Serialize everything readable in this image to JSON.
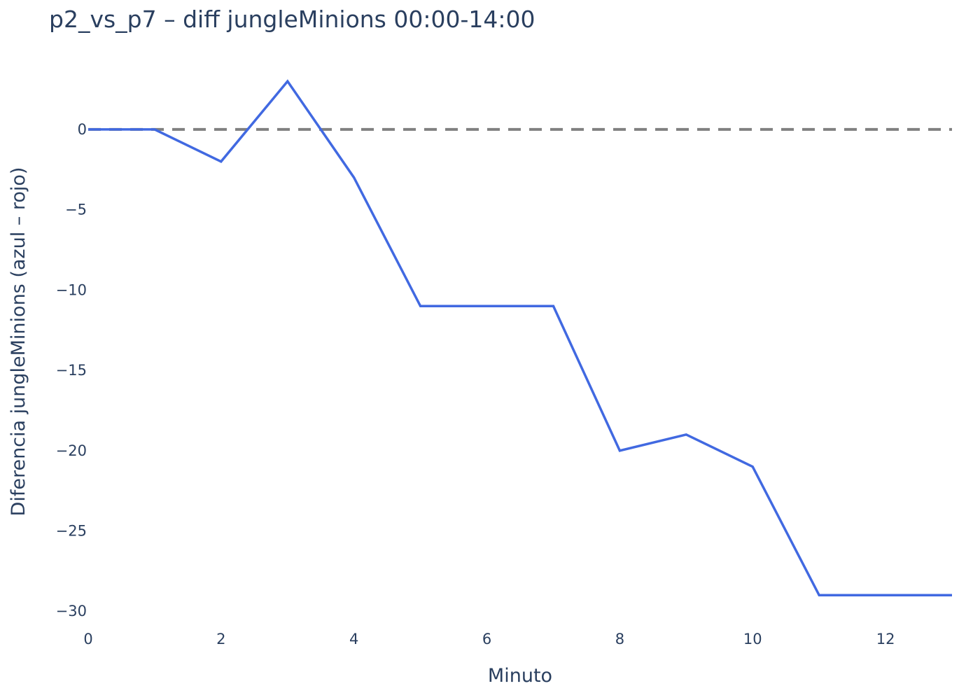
{
  "chart_data": {
    "type": "line",
    "title": "p2_vs_p7 – diff jungleMinions 00:00-14:00",
    "xlabel": "Minuto",
    "ylabel": "Diferencia jungleMinions (azul – rojo)",
    "xlim": [
      0,
      13
    ],
    "ylim": [
      -30.6,
      3.7
    ],
    "x_ticks": [
      0,
      2,
      4,
      6,
      8,
      10,
      12
    ],
    "x_tick_labels": [
      "0",
      "2",
      "4",
      "6",
      "8",
      "10",
      "12"
    ],
    "y_ticks": [
      0,
      -5,
      -10,
      -15,
      -20,
      -25,
      -30
    ],
    "y_tick_labels": [
      "0",
      "−5",
      "−10",
      "−15",
      "−20",
      "−25",
      "−30"
    ],
    "grid": false,
    "legend": "none",
    "reference_line": {
      "y": 0,
      "style": "dashed",
      "color": "#808080"
    },
    "series": [
      {
        "color": "#4169e1",
        "x": [
          0,
          1,
          2,
          3,
          4,
          5,
          6,
          7,
          8,
          9,
          10,
          11,
          12,
          13
        ],
        "y": [
          0,
          0,
          -2,
          3,
          -3,
          -11,
          -11,
          -11,
          -20,
          -19,
          -21,
          -29,
          -29,
          -29
        ]
      }
    ]
  }
}
